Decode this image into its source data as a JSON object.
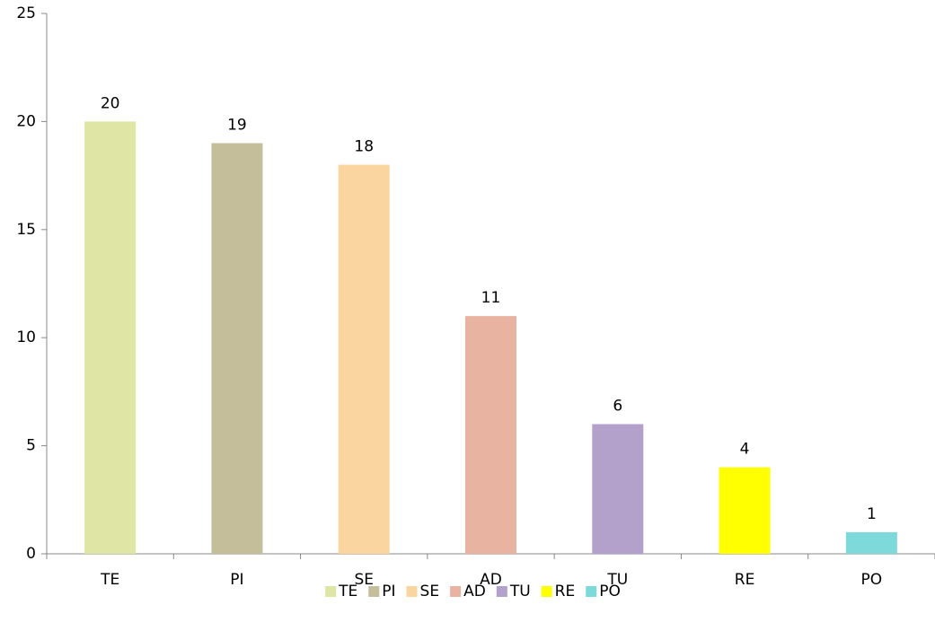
{
  "chart_data": {
    "type": "bar",
    "categories": [
      "TE",
      "PI",
      "SE",
      "AD",
      "TU",
      "RE",
      "PO"
    ],
    "values": [
      20,
      19,
      18,
      11,
      6,
      4,
      1
    ],
    "colors": [
      "#dfe5a5",
      "#c4be9a",
      "#fad59f",
      "#e9b3a1",
      "#b3a1cb",
      "#ffff00",
      "#7dd9da"
    ],
    "ylim": [
      0,
      25
    ],
    "yticks": [
      0,
      5,
      10,
      15,
      20,
      25
    ],
    "grid": false,
    "legend": "bottom"
  }
}
